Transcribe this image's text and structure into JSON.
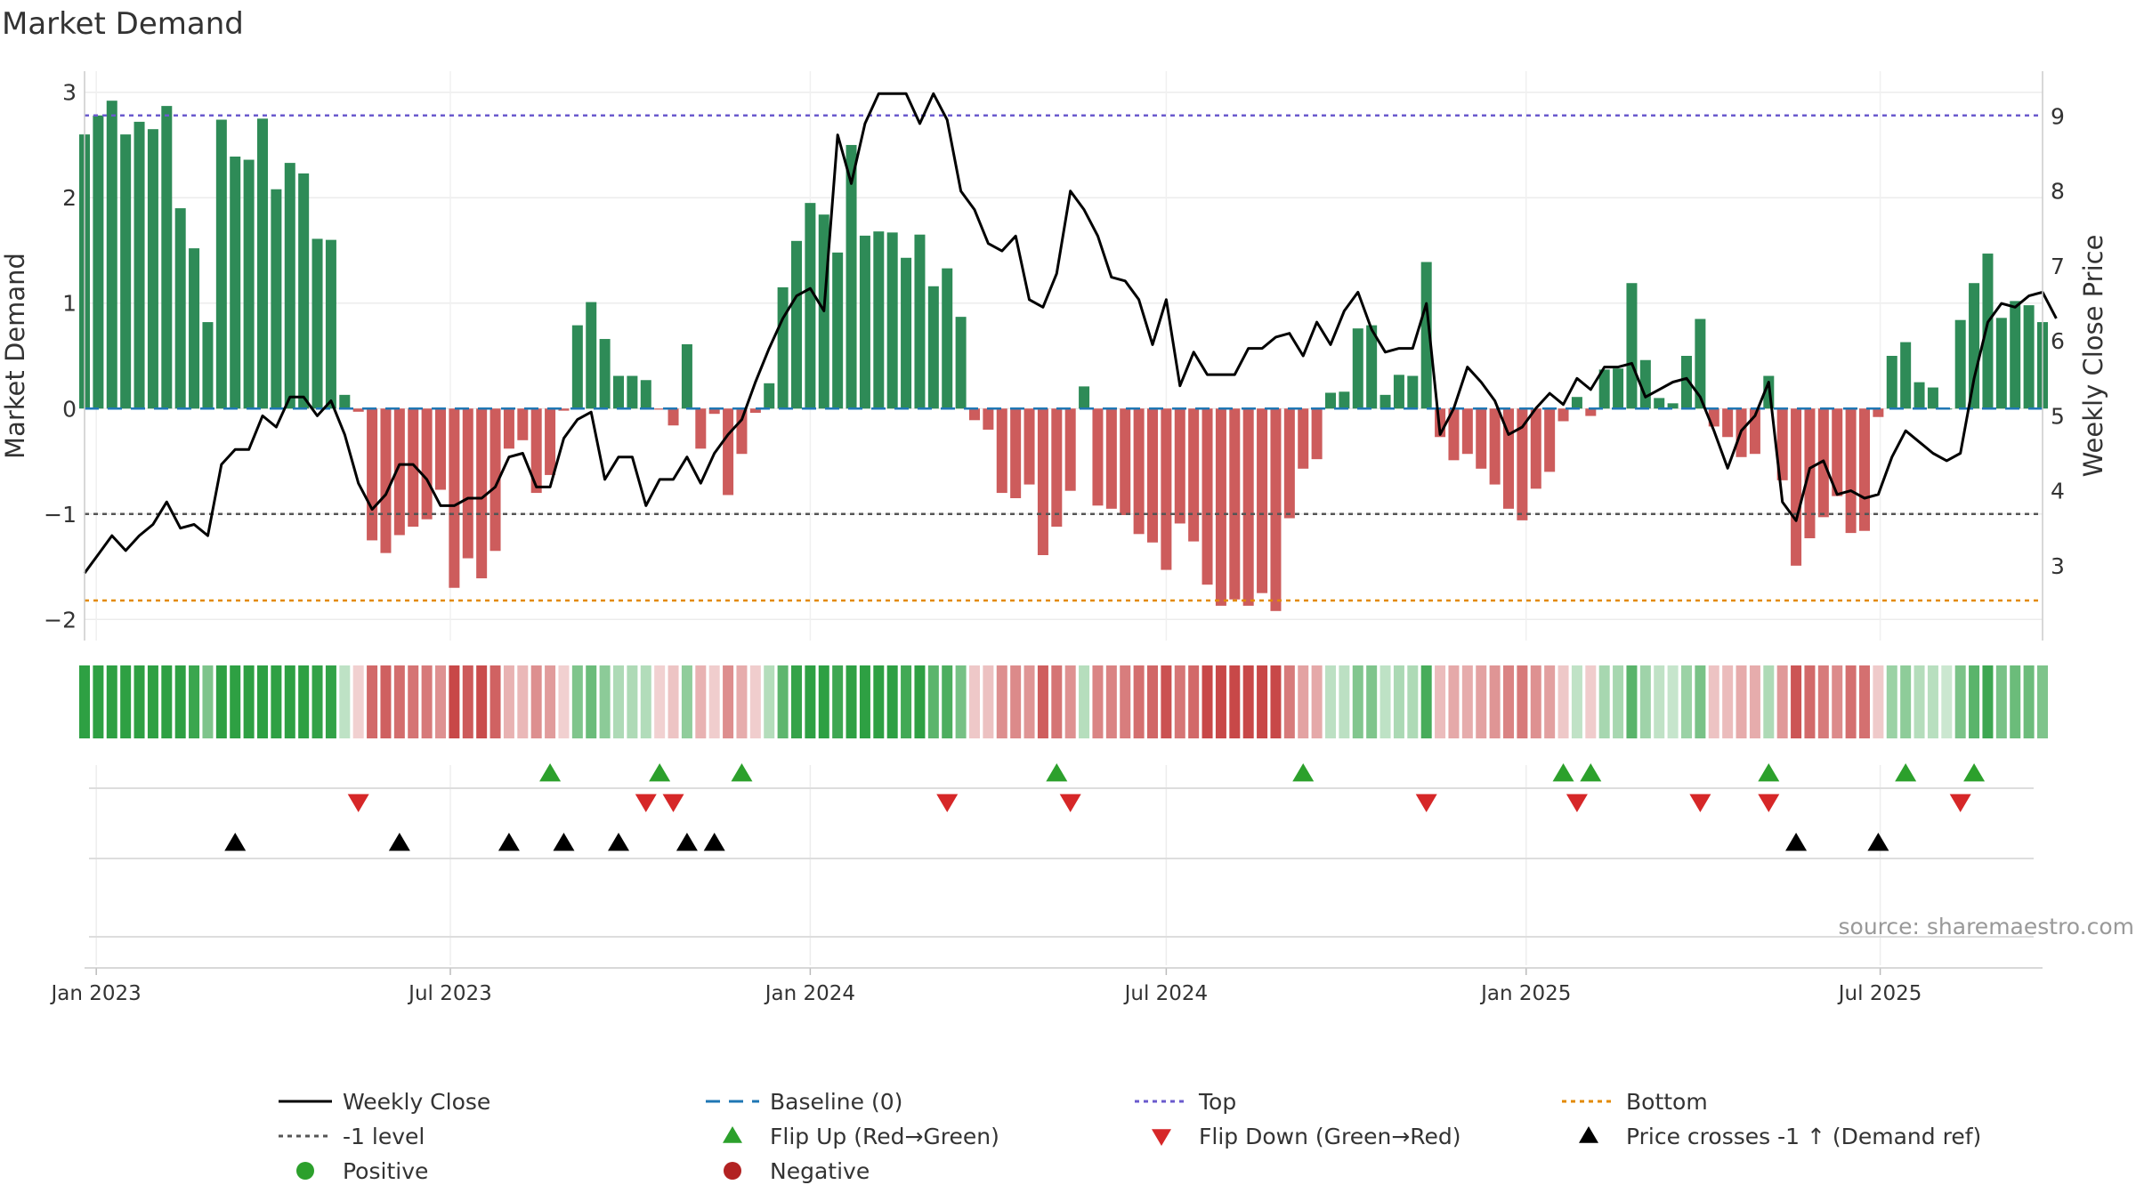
{
  "chart_data": {
    "type": "bar",
    "title": "Market Demand",
    "ylabel": "Market Demand",
    "y2label": "Weekly Close Price",
    "ylim": [
      -2.2,
      3.2
    ],
    "y2lim": [
      2.0,
      9.6
    ],
    "yticks": [
      3,
      2,
      1,
      0,
      -1,
      -2
    ],
    "yticklabels": [
      "3",
      "2",
      "1",
      "0",
      "−1",
      "−2"
    ],
    "y2ticks": [
      9,
      8,
      7,
      6,
      5,
      4,
      3
    ],
    "y2ticklabels": [
      "9",
      "8",
      "7",
      "6",
      "5",
      "4",
      "3"
    ],
    "x_start": "2022-12-26",
    "week_days": 7,
    "xticks": [
      {
        "label": "Jan 2023",
        "day": 6
      },
      {
        "label": "Jul 2023",
        "day": 187
      },
      {
        "label": "Jan 2024",
        "day": 371
      },
      {
        "label": "Jul 2024",
        "day": 553
      },
      {
        "label": "Jan 2025",
        "day": 737
      },
      {
        "label": "Jul 2025",
        "day": 918
      }
    ],
    "x_max_day": 1001,
    "reference_lines": {
      "top": 2.78,
      "minus_one": -1,
      "bottom": -1.82,
      "baseline": 0
    },
    "demand": [
      2.6,
      2.78,
      2.92,
      2.6,
      2.72,
      2.65,
      2.87,
      1.9,
      1.52,
      0.82,
      2.74,
      2.39,
      2.36,
      2.75,
      2.08,
      2.33,
      2.23,
      1.61,
      1.6,
      0.13,
      -0.03,
      -1.25,
      -1.37,
      -1.2,
      -1.12,
      -1.05,
      -0.77,
      -1.7,
      -1.42,
      -1.61,
      -1.35,
      -0.38,
      -0.3,
      -0.8,
      -0.63,
      -0.02,
      0.79,
      1.01,
      0.66,
      0.31,
      0.31,
      0.27,
      -0.01,
      -0.16,
      0.61,
      -0.38,
      -0.05,
      -0.82,
      -0.43,
      -0.04,
      0.24,
      1.15,
      1.59,
      1.95,
      1.84,
      1.48,
      2.5,
      1.64,
      1.68,
      1.67,
      1.43,
      1.65,
      1.16,
      1.33,
      0.87,
      -0.11,
      -0.2,
      -0.8,
      -0.85,
      -0.72,
      -1.39,
      -1.12,
      -0.78,
      0.21,
      -0.92,
      -0.95,
      -1.01,
      -1.19,
      -1.27,
      -1.53,
      -1.09,
      -1.26,
      -1.67,
      -1.87,
      -1.81,
      -1.87,
      -1.75,
      -1.92,
      -1.04,
      -0.57,
      -0.48,
      0.15,
      0.16,
      0.76,
      0.79,
      0.13,
      0.32,
      0.31,
      1.39,
      -0.27,
      -0.49,
      -0.43,
      -0.57,
      -0.72,
      -0.95,
      -1.06,
      -0.76,
      -0.6,
      -0.12,
      0.11,
      -0.07,
      0.37,
      0.38,
      1.19,
      0.46,
      0.1,
      0.05,
      0.5,
      0.85,
      -0.17,
      -0.27,
      -0.46,
      -0.43,
      0.31,
      -0.68,
      -1.49,
      -1.23,
      -1.03,
      -0.83,
      -1.18,
      -1.16,
      -0.08,
      0.5,
      0.63,
      0.25,
      0.2,
      0.0,
      0.84,
      1.19,
      1.47,
      0.86,
      1.02,
      0.98,
      0.82
    ],
    "price": [
      2.9,
      3.15,
      3.4,
      3.2,
      3.4,
      3.55,
      3.85,
      3.5,
      3.55,
      3.4,
      4.35,
      4.55,
      4.55,
      5.0,
      4.85,
      5.25,
      5.25,
      5.0,
      5.2,
      4.75,
      4.1,
      3.75,
      3.95,
      4.35,
      4.35,
      4.15,
      3.8,
      3.8,
      3.9,
      3.9,
      4.05,
      4.45,
      4.5,
      4.05,
      4.05,
      4.7,
      4.95,
      5.05,
      4.15,
      4.45,
      4.45,
      3.8,
      4.15,
      4.15,
      4.45,
      4.1,
      4.5,
      4.75,
      4.95,
      5.45,
      5.9,
      6.3,
      6.6,
      6.7,
      6.4,
      8.75,
      8.1,
      8.9,
      9.3,
      9.3,
      9.3,
      8.9,
      9.3,
      8.95,
      8.0,
      7.75,
      7.3,
      7.2,
      7.4,
      6.55,
      6.45,
      6.9,
      8.0,
      7.75,
      7.4,
      6.85,
      6.8,
      6.55,
      5.95,
      6.55,
      5.4,
      5.85,
      5.55,
      5.55,
      5.55,
      5.9,
      5.9,
      6.05,
      6.1,
      5.8,
      6.25,
      5.95,
      6.4,
      6.65,
      6.15,
      5.85,
      5.9,
      5.9,
      6.5,
      4.75,
      5.1,
      5.65,
      5.45,
      5.2,
      4.75,
      4.85,
      5.1,
      5.3,
      5.15,
      5.5,
      5.35,
      5.65,
      5.65,
      5.7,
      5.25,
      5.35,
      5.45,
      5.5,
      5.25,
      4.8,
      4.3,
      4.8,
      5.0,
      5.45,
      3.85,
      3.6,
      4.3,
      4.4,
      3.95,
      4.0,
      3.9,
      3.95,
      4.45,
      4.8,
      4.65,
      4.5,
      4.4,
      4.5,
      5.5,
      6.25,
      6.5,
      6.45,
      6.6,
      6.65,
      6.3
    ],
    "flip_up_weeks": [
      34,
      42,
      48,
      71,
      89,
      108,
      110,
      123,
      133,
      138
    ],
    "flip_down_weeks": [
      20,
      41,
      43,
      63,
      72,
      98,
      109,
      118,
      123,
      137
    ],
    "price_cross_weeks": [
      11,
      23,
      31,
      35,
      39,
      44,
      46,
      125,
      131
    ],
    "source_text": "source: sharemaestro.com",
    "legend": [
      {
        "label": "Weekly Close",
        "kind": "line-solid",
        "color": "#000000"
      },
      {
        "label": "Baseline (0)",
        "kind": "line-dash",
        "color": "#1f77b4"
      },
      {
        "label": "Top",
        "kind": "line-dot",
        "color": "#6a5acd"
      },
      {
        "label": "Bottom",
        "kind": "line-dot",
        "color": "#e38a00"
      },
      {
        "label": "-1 level",
        "kind": "line-dot",
        "color": "#555555"
      },
      {
        "label": "Flip Up (Red→Green)",
        "kind": "tri-up",
        "color": "#2ca02c"
      },
      {
        "label": "Flip Down (Green→Red)",
        "kind": "tri-down",
        "color": "#d62728"
      },
      {
        "label": "Price crosses -1 ↑ (Demand ref)",
        "kind": "tri-up",
        "color": "#000000"
      },
      {
        "label": "Positive",
        "kind": "dot",
        "color": "#2ca02c"
      },
      {
        "label": "Negative",
        "kind": "dot",
        "color": "#b22222"
      }
    ],
    "colors": {
      "positive_bar": "#2e8b57",
      "negative_bar": "#cd5c5c",
      "price_line": "#000000",
      "baseline": "#1f77b4",
      "top_line": "#6a5acd",
      "bottom_line": "#e38a00",
      "minus_one_line": "#555555",
      "flip_up": "#2ca02c",
      "flip_down": "#d62728",
      "cross": "#000000",
      "heat_pos": "#2ea043",
      "heat_neg": "#c84848"
    }
  }
}
